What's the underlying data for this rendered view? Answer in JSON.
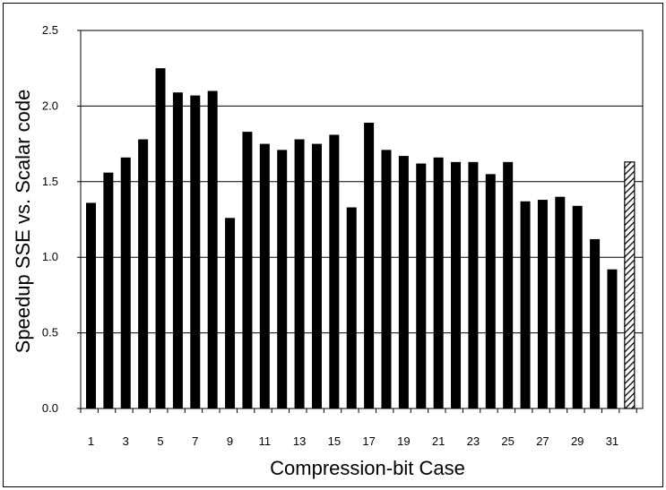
{
  "chart_data": {
    "type": "bar",
    "title": "",
    "xlabel": "Compression-bit Case",
    "ylabel": "Speedup SSE vs. Scalar code",
    "ylim": [
      0,
      2.5
    ],
    "yticks": [
      "0.0",
      "0.5",
      "1.0",
      "1.5",
      "2.0",
      "2.5"
    ],
    "xtick_labels": [
      "1",
      "3",
      "5",
      "7",
      "9",
      "11",
      "13",
      "15",
      "17",
      "19",
      "21",
      "23",
      "25",
      "27",
      "29",
      "31"
    ],
    "grid": "horizontal",
    "categories": [
      1,
      2,
      3,
      4,
      5,
      6,
      7,
      8,
      9,
      10,
      11,
      12,
      13,
      14,
      15,
      16,
      17,
      18,
      19,
      20,
      21,
      22,
      23,
      24,
      25,
      26,
      27,
      28,
      29,
      30,
      31,
      32
    ],
    "values": [
      1.36,
      1.56,
      1.66,
      1.78,
      2.25,
      2.09,
      2.07,
      2.1,
      1.26,
      1.83,
      1.75,
      1.71,
      1.78,
      1.75,
      1.81,
      1.33,
      1.89,
      1.71,
      1.67,
      1.62,
      1.66,
      1.63,
      1.63,
      1.55,
      1.63,
      1.37,
      1.38,
      1.4,
      1.34,
      1.12,
      0.92,
      1.63
    ],
    "hatched_last_bar": true,
    "colors": {
      "bar": "#000000",
      "grid": "#000000",
      "background": "#ffffff"
    }
  }
}
